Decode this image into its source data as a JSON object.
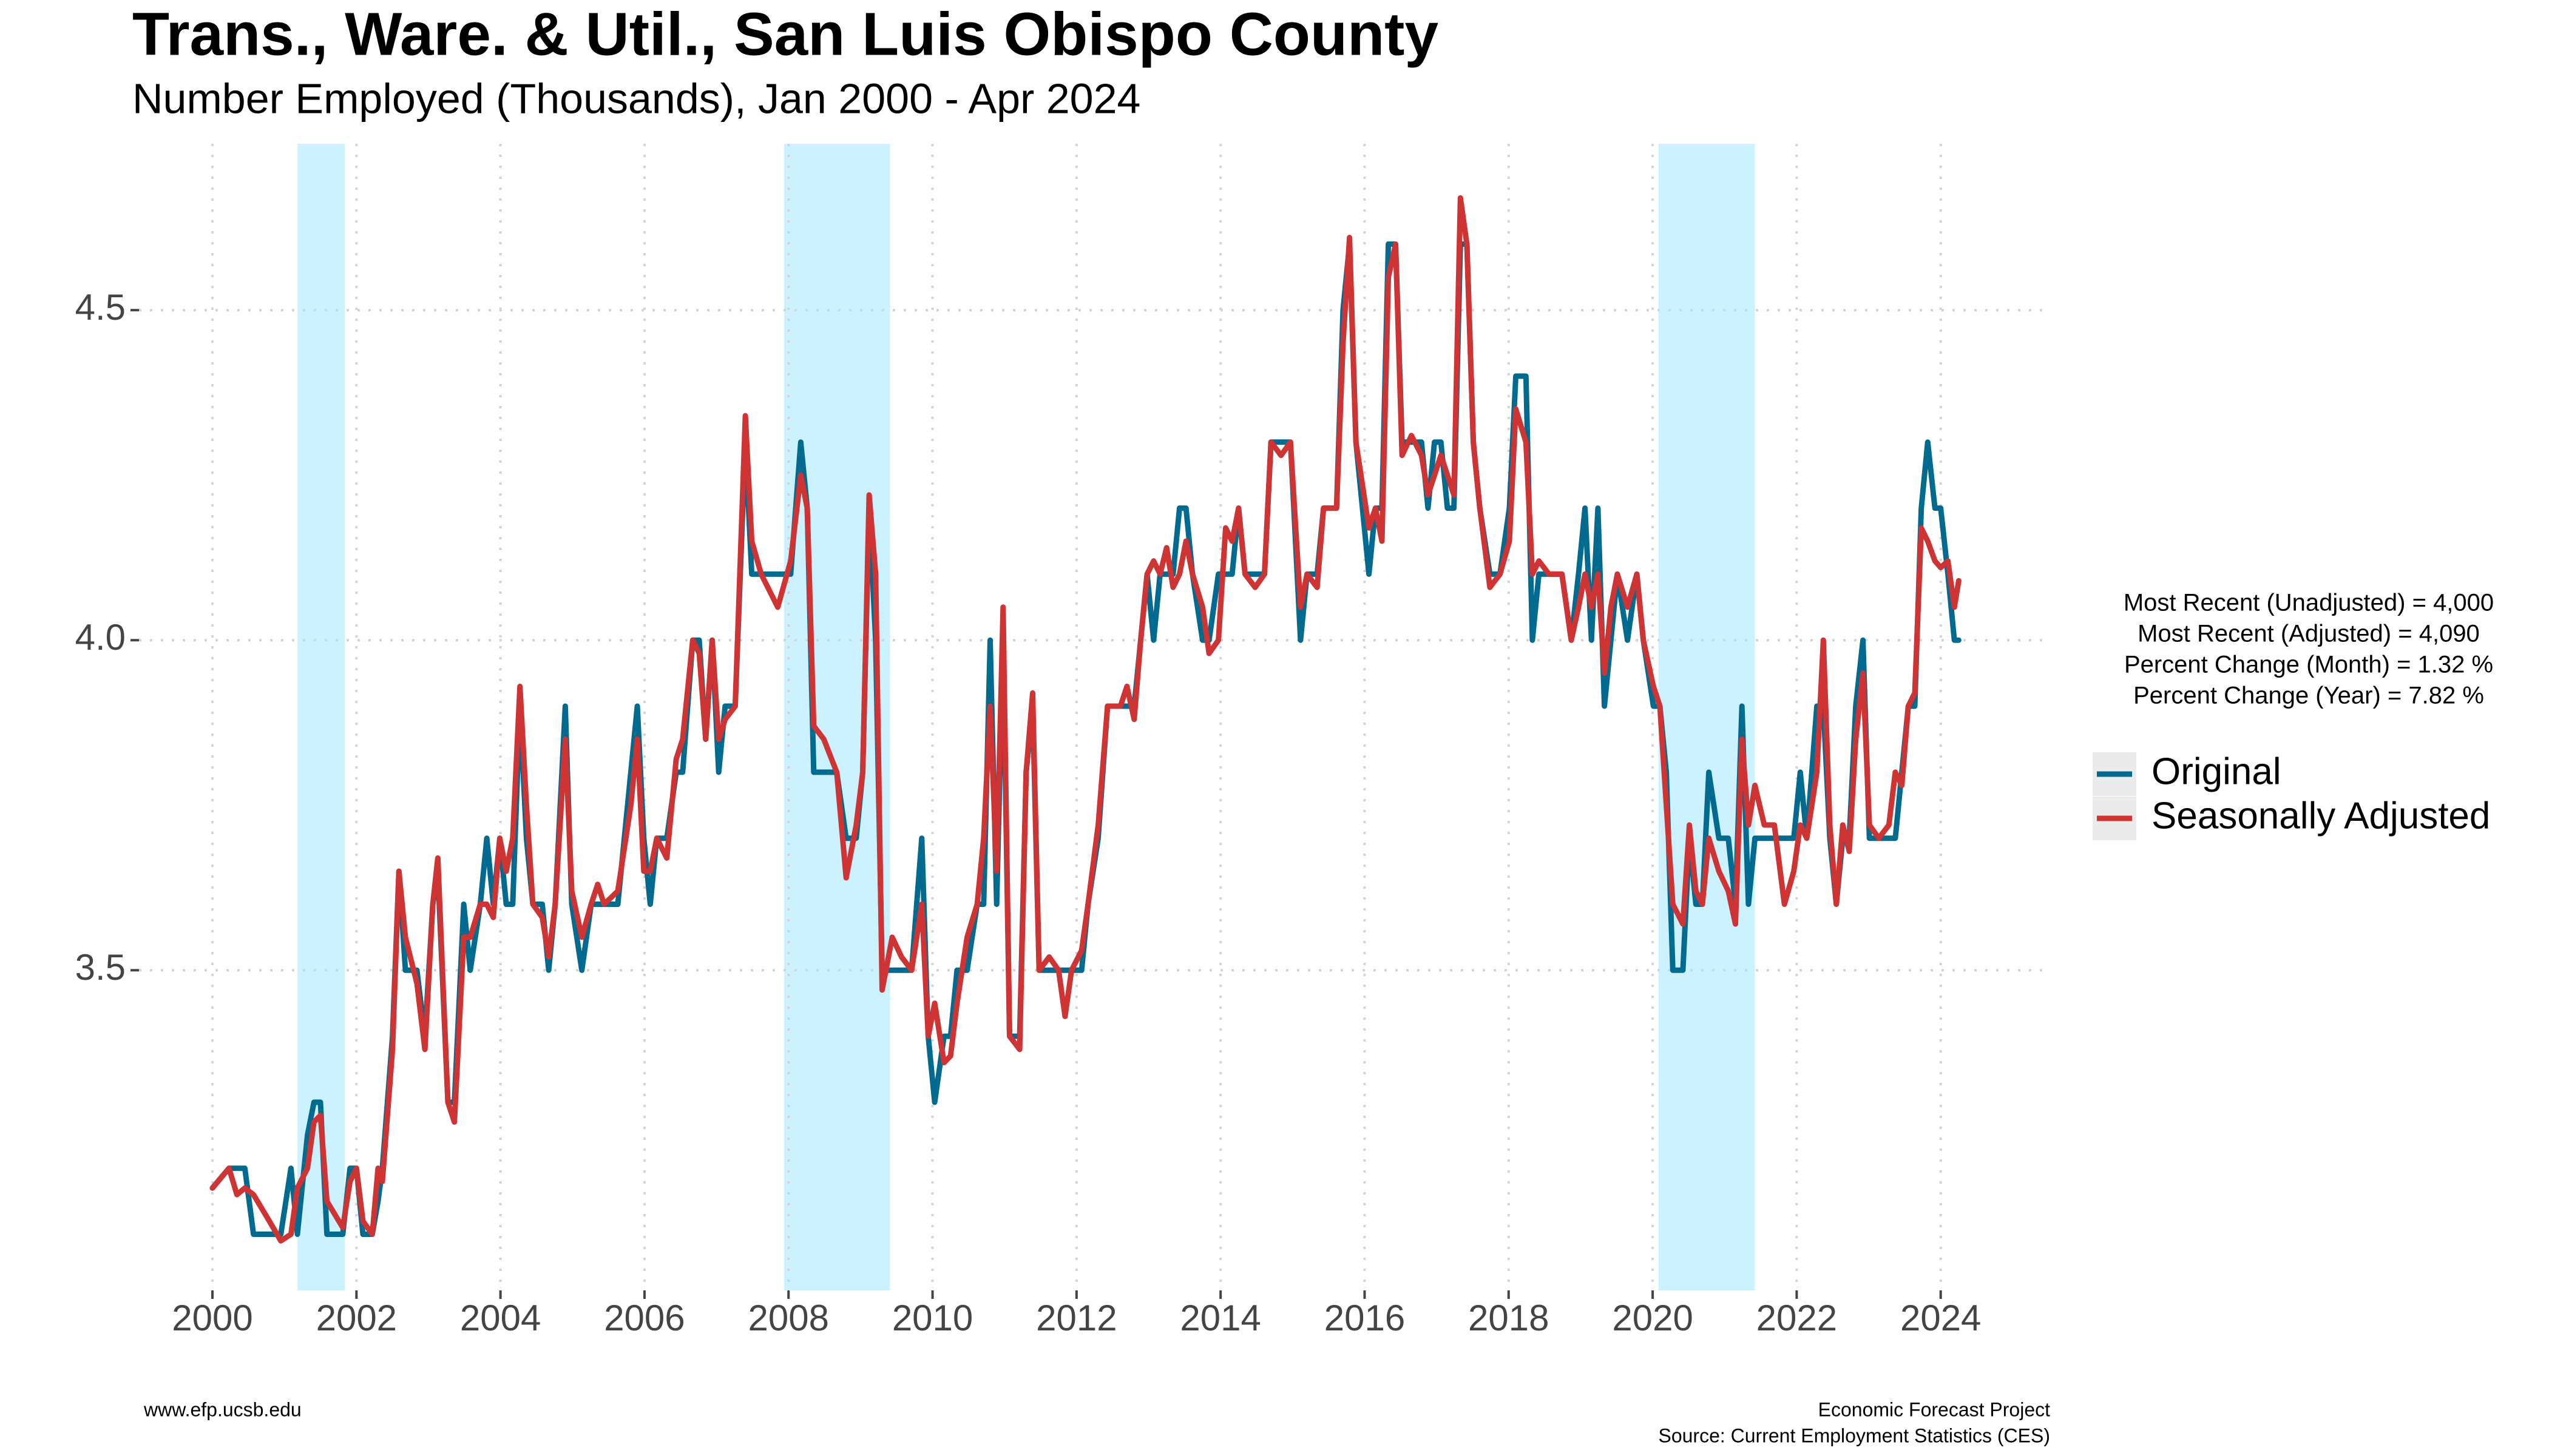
{
  "chart_data": {
    "type": "line",
    "title": "Trans., Ware. & Util., San Luis Obispo County",
    "subtitle": "Number Employed (Thousands), Jan 2000 - Apr 2024",
    "annotations": [
      "Most Recent (Unadjusted) = 4,000",
      "Most Recent (Adjusted) = 4,090",
      "Percent Change (Month) = 1.32 %",
      "Percent Change (Year) = 7.82 %"
    ],
    "footer_left": "www.efp.ucsb.edu",
    "footer_right": [
      "Economic Forecast Project",
      "Source: Current Employment Statistics (CES)"
    ],
    "xlim": [
      1998.98,
      2025.41
    ],
    "xticks": [
      2000,
      2002,
      2004,
      2006,
      2008,
      2010,
      2012,
      2014,
      2016,
      2018,
      2020,
      2022,
      2024
    ],
    "ylim": [
      3.015,
      4.752
    ],
    "yticks": [
      {
        "value": 3.5,
        "label": "3.5"
      },
      {
        "value": 4,
        "label": "4.0"
      },
      {
        "value": 4.5,
        "label": "4.5"
      }
    ],
    "grid": true,
    "legend": "right",
    "shaded_periods": [
      [
        2001.18,
        2001.84
      ],
      [
        2007.94,
        2009.41
      ],
      [
        2020.08,
        2021.42
      ]
    ],
    "shade_color": "#ccf1ff",
    "x": [
      2000.0,
      2000.23,
      2000.34,
      2000.45,
      2000.57,
      2000.79,
      2000.95,
      2001.09,
      2001.18,
      2001.32,
      2001.41,
      2001.5,
      2001.59,
      2001.81,
      2001.91,
      2002.0,
      2002.09,
      2002.22,
      2002.3,
      2002.36,
      2002.5,
      2002.59,
      2002.68,
      2002.84,
      2002.95,
      2003.06,
      2003.13,
      2003.27,
      2003.36,
      2003.49,
      2003.58,
      2003.72,
      2003.81,
      2003.9,
      2003.99,
      2004.08,
      2004.17,
      2004.27,
      2004.36,
      2004.45,
      2004.58,
      2004.67,
      2004.76,
      2004.9,
      2004.99,
      2005.13,
      2005.26,
      2005.35,
      2005.44,
      2005.63,
      2005.81,
      2005.9,
      2005.99,
      2006.08,
      2006.17,
      2006.31,
      2006.44,
      2006.53,
      2006.67,
      2006.76,
      2006.85,
      2006.94,
      2007.03,
      2007.12,
      2007.26,
      2007.4,
      2007.49,
      2007.62,
      2007.85,
      2008.03,
      2008.17,
      2008.26,
      2008.35,
      2008.49,
      2008.67,
      2008.8,
      2008.94,
      2009.03,
      2009.12,
      2009.21,
      2009.3,
      2009.44,
      2009.57,
      2009.71,
      2009.85,
      2009.94,
      2010.03,
      2010.16,
      2010.25,
      2010.34,
      2010.48,
      2010.62,
      2010.71,
      2010.8,
      2010.89,
      2010.98,
      2011.07,
      2011.21,
      2011.3,
      2011.39,
      2011.48,
      2011.62,
      2011.75,
      2011.84,
      2011.93,
      2012.07,
      2012.16,
      2012.3,
      2012.43,
      2012.61,
      2012.7,
      2012.8,
      2012.89,
      2012.98,
      2013.07,
      2013.16,
      2013.25,
      2013.34,
      2013.43,
      2013.52,
      2013.61,
      2013.75,
      2013.84,
      2013.97,
      2014.07,
      2014.16,
      2014.25,
      2014.34,
      2014.48,
      2014.61,
      2014.7,
      2014.84,
      2014.97,
      2015.11,
      2015.2,
      2015.34,
      2015.43,
      2015.61,
      2015.7,
      2015.79,
      2015.88,
      2016.06,
      2016.15,
      2016.24,
      2016.33,
      2016.43,
      2016.52,
      2016.65,
      2016.79,
      2016.88,
      2016.97,
      2017.06,
      2017.15,
      2017.24,
      2017.33,
      2017.42,
      2017.51,
      2017.6,
      2017.74,
      2017.88,
      2018.01,
      2018.1,
      2018.24,
      2018.33,
      2018.42,
      2018.56,
      2018.74,
      2018.87,
      2018.97,
      2019.06,
      2019.15,
      2019.24,
      2019.33,
      2019.42,
      2019.51,
      2019.65,
      2019.78,
      2019.87,
      2020.01,
      2020.1,
      2020.19,
      2020.28,
      2020.42,
      2020.51,
      2020.6,
      2020.69,
      2020.78,
      2020.92,
      2021.05,
      2021.15,
      2021.24,
      2021.33,
      2021.42,
      2021.55,
      2021.69,
      2021.83,
      2021.96,
      2022.05,
      2022.14,
      2022.28,
      2022.37,
      2022.46,
      2022.55,
      2022.64,
      2022.73,
      2022.82,
      2022.92,
      2023.01,
      2023.14,
      2023.28,
      2023.37,
      2023.46,
      2023.55,
      2023.64,
      2023.73,
      2023.82,
      2023.92,
      2024.0,
      2024.1,
      2024.19,
      2024.25
    ],
    "series": [
      {
        "name": "Original",
        "color": "#006b8f",
        "values": [
          3.17,
          3.2,
          3.2,
          3.2,
          3.1,
          3.1,
          3.1,
          3.2,
          3.1,
          3.25,
          3.3,
          3.3,
          3.1,
          3.1,
          3.2,
          3.2,
          3.1,
          3.1,
          3.15,
          3.2,
          3.4,
          3.65,
          3.5,
          3.5,
          3.4,
          3.6,
          3.65,
          3.3,
          3.3,
          3.6,
          3.5,
          3.6,
          3.7,
          3.6,
          3.7,
          3.6,
          3.6,
          3.9,
          3.7,
          3.6,
          3.6,
          3.5,
          3.6,
          3.9,
          3.6,
          3.5,
          3.6,
          3.6,
          3.6,
          3.6,
          3.8,
          3.9,
          3.7,
          3.6,
          3.7,
          3.7,
          3.8,
          3.8,
          4.0,
          4.0,
          3.85,
          4.0,
          3.8,
          3.9,
          3.9,
          4.3,
          4.1,
          4.1,
          4.1,
          4.1,
          4.3,
          4.2,
          3.8,
          3.8,
          3.8,
          3.7,
          3.7,
          3.8,
          4.2,
          4.0,
          3.5,
          3.5,
          3.5,
          3.5,
          3.7,
          3.4,
          3.3,
          3.4,
          3.4,
          3.5,
          3.5,
          3.6,
          3.6,
          4.0,
          3.6,
          4.0,
          3.4,
          3.4,
          3.8,
          3.9,
          3.5,
          3.5,
          3.5,
          3.5,
          3.5,
          3.5,
          3.6,
          3.7,
          3.9,
          3.9,
          3.9,
          3.9,
          4.0,
          4.1,
          4.0,
          4.1,
          4.1,
          4.1,
          4.2,
          4.2,
          4.1,
          4.0,
          4.0,
          4.1,
          4.1,
          4.1,
          4.2,
          4.1,
          4.1,
          4.1,
          4.3,
          4.3,
          4.3,
          4.0,
          4.1,
          4.1,
          4.2,
          4.2,
          4.5,
          4.6,
          4.3,
          4.1,
          4.2,
          4.2,
          4.6,
          4.6,
          4.3,
          4.3,
          4.3,
          4.2,
          4.3,
          4.3,
          4.2,
          4.2,
          4.6,
          4.6,
          4.3,
          4.2,
          4.1,
          4.1,
          4.2,
          4.4,
          4.4,
          4.0,
          4.1,
          4.1,
          4.1,
          4.0,
          4.1,
          4.2,
          4.0,
          4.2,
          3.9,
          4.0,
          4.1,
          4.0,
          4.1,
          4.0,
          3.9,
          3.9,
          3.8,
          3.5,
          3.5,
          3.7,
          3.6,
          3.6,
          3.8,
          3.7,
          3.7,
          3.6,
          3.9,
          3.6,
          3.7,
          3.7,
          3.7,
          3.7,
          3.7,
          3.8,
          3.7,
          3.9,
          3.9,
          3.7,
          3.6,
          3.7,
          3.7,
          3.9,
          4.0,
          3.7,
          3.7,
          3.7,
          3.7,
          3.8,
          3.9,
          3.9,
          4.2,
          4.3,
          4.2,
          4.2,
          4.1,
          4.0,
          4.0
        ]
      },
      {
        "name": "Seasonally Adjusted",
        "color": "#cf3434",
        "values": [
          3.17,
          3.2,
          3.16,
          3.17,
          3.16,
          3.12,
          3.09,
          3.1,
          3.17,
          3.2,
          3.27,
          3.28,
          3.15,
          3.11,
          3.18,
          3.2,
          3.12,
          3.1,
          3.2,
          3.18,
          3.38,
          3.65,
          3.55,
          3.48,
          3.38,
          3.6,
          3.67,
          3.3,
          3.27,
          3.55,
          3.55,
          3.6,
          3.6,
          3.58,
          3.7,
          3.65,
          3.7,
          3.93,
          3.75,
          3.6,
          3.58,
          3.52,
          3.6,
          3.85,
          3.62,
          3.55,
          3.6,
          3.63,
          3.6,
          3.62,
          3.75,
          3.85,
          3.65,
          3.65,
          3.7,
          3.67,
          3.82,
          3.85,
          4.0,
          3.98,
          3.85,
          4.0,
          3.85,
          3.88,
          3.9,
          4.34,
          4.15,
          4.1,
          4.05,
          4.12,
          4.25,
          4.2,
          3.87,
          3.85,
          3.8,
          3.64,
          3.72,
          3.8,
          4.22,
          4.1,
          3.47,
          3.55,
          3.52,
          3.5,
          3.6,
          3.4,
          3.45,
          3.36,
          3.37,
          3.45,
          3.55,
          3.6,
          3.7,
          3.9,
          3.65,
          4.05,
          3.4,
          3.38,
          3.8,
          3.92,
          3.5,
          3.52,
          3.5,
          3.43,
          3.5,
          3.53,
          3.6,
          3.72,
          3.9,
          3.9,
          3.93,
          3.88,
          4.0,
          4.1,
          4.12,
          4.1,
          4.14,
          4.08,
          4.1,
          4.15,
          4.1,
          4.05,
          3.98,
          4.0,
          4.17,
          4.15,
          4.2,
          4.1,
          4.08,
          4.1,
          4.3,
          4.28,
          4.3,
          4.05,
          4.1,
          4.08,
          4.2,
          4.2,
          4.45,
          4.61,
          4.3,
          4.17,
          4.2,
          4.15,
          4.55,
          4.6,
          4.28,
          4.31,
          4.28,
          4.22,
          4.25,
          4.28,
          4.25,
          4.22,
          4.67,
          4.6,
          4.3,
          4.2,
          4.08,
          4.1,
          4.15,
          4.35,
          4.3,
          4.1,
          4.12,
          4.1,
          4.1,
          4.0,
          4.05,
          4.1,
          4.05,
          4.1,
          3.95,
          4.05,
          4.1,
          4.05,
          4.1,
          4.0,
          3.93,
          3.9,
          3.75,
          3.6,
          3.57,
          3.72,
          3.62,
          3.6,
          3.7,
          3.65,
          3.62,
          3.57,
          3.85,
          3.72,
          3.78,
          3.72,
          3.72,
          3.6,
          3.65,
          3.72,
          3.7,
          3.8,
          4.0,
          3.72,
          3.6,
          3.72,
          3.68,
          3.85,
          3.95,
          3.72,
          3.7,
          3.72,
          3.8,
          3.78,
          3.9,
          3.92,
          4.17,
          4.15,
          4.12,
          4.11,
          4.12,
          4.05,
          4.09
        ]
      }
    ]
  }
}
